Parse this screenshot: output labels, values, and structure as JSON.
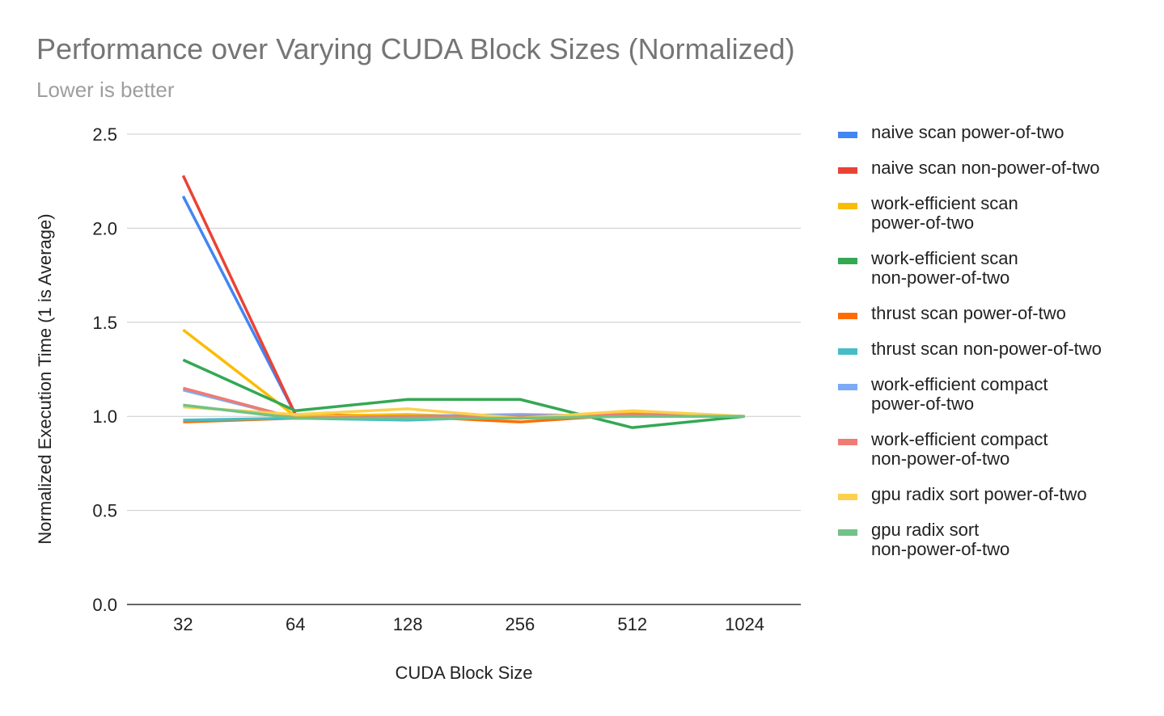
{
  "title": "Performance over Varying CUDA Block Sizes (Normalized)",
  "subtitle": "Lower is better",
  "chart_data": {
    "type": "line",
    "title": "Performance over Varying CUDA Block Sizes (Normalized)",
    "subtitle": "Lower is better",
    "xlabel": "CUDA Block Size",
    "ylabel": "Normalized Execution Time (1 is Average)",
    "categories": [
      "32",
      "64",
      "128",
      "256",
      "512",
      "1024"
    ],
    "ylim": [
      0,
      2.5
    ],
    "yticks": [
      "0.0",
      "0.5",
      "1.0",
      "1.5",
      "2.0",
      "2.5"
    ],
    "grid": true,
    "legend_position": "right",
    "series": [
      {
        "name": "naive scan power-of-two",
        "label_lines": [
          "naive scan power-of-two"
        ],
        "color": "#4285f4",
        "values": [
          2.17,
          1.01,
          1.0,
          1.0,
          1.0,
          1.0
        ]
      },
      {
        "name": "naive scan non-power-of-two",
        "label_lines": [
          "naive scan non-power-of-two"
        ],
        "color": "#ea4335",
        "values": [
          2.28,
          1.01,
          1.0,
          1.0,
          1.0,
          1.0
        ]
      },
      {
        "name": "work-efficient scan power-of-two",
        "label_lines": [
          "work-efficient scan",
          "power-of-two"
        ],
        "color": "#fbbc04",
        "values": [
          1.46,
          1.0,
          1.01,
          0.99,
          1.02,
          1.0
        ]
      },
      {
        "name": "work-efficient scan non-power-of-two",
        "label_lines": [
          "work-efficient scan",
          "non-power-of-two"
        ],
        "color": "#34a853",
        "values": [
          1.3,
          1.03,
          1.09,
          1.09,
          0.94,
          1.0
        ]
      },
      {
        "name": "thrust scan power-of-two",
        "label_lines": [
          "thrust scan power-of-two"
        ],
        "color": "#ff6d01",
        "values": [
          0.97,
          0.99,
          1.0,
          0.97,
          1.01,
          1.0
        ]
      },
      {
        "name": "thrust scan non-power-of-two",
        "label_lines": [
          "thrust scan non-power-of-two"
        ],
        "color": "#46bdc6",
        "values": [
          0.98,
          0.99,
          0.98,
          1.0,
          1.0,
          1.0
        ]
      },
      {
        "name": "work-efficient compact power-of-two",
        "label_lines": [
          "work-efficient compact",
          "power-of-two"
        ],
        "color": "#7baaf7",
        "values": [
          1.14,
          0.99,
          1.0,
          1.01,
          1.0,
          1.0
        ]
      },
      {
        "name": "work-efficient compact non-power-of-two",
        "label_lines": [
          "work-efficient compact",
          "non-power-of-two"
        ],
        "color": "#f07b72",
        "values": [
          1.15,
          0.99,
          1.0,
          1.0,
          1.01,
          1.0
        ]
      },
      {
        "name": "gpu radix sort power-of-two",
        "label_lines": [
          "gpu radix sort power-of-two"
        ],
        "color": "#fcd04f",
        "values": [
          1.05,
          1.01,
          1.04,
          0.99,
          1.03,
          1.0
        ]
      },
      {
        "name": "gpu radix sort non-power-of-two",
        "label_lines": [
          "gpu radix sort",
          "non-power-of-two"
        ],
        "color": "#71c287",
        "values": [
          1.06,
          0.99,
          0.99,
          0.99,
          1.0,
          1.0
        ]
      }
    ]
  }
}
